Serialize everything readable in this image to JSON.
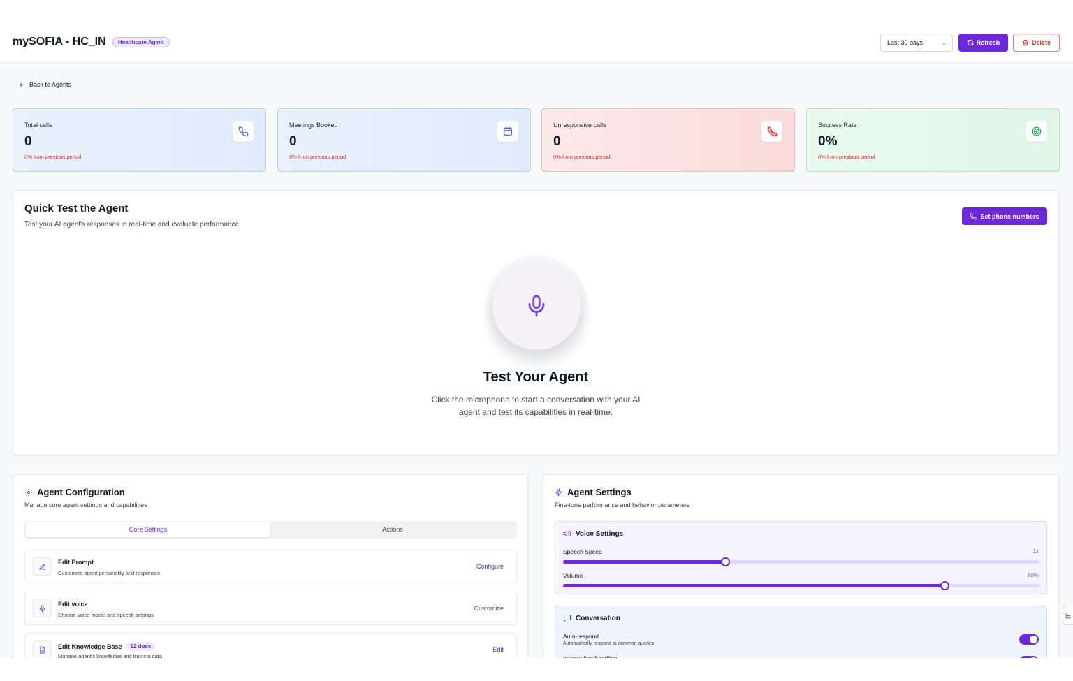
{
  "header": {
    "title": "mySOFIA - HC_IN",
    "badge": "Healthcare Agent",
    "range_select": "Last 30 days",
    "refresh_label": "Refresh",
    "delete_label": "Delete"
  },
  "back_link": "Back to Agents",
  "stats": [
    {
      "label": "Total calls",
      "value": "0",
      "delta": "0% from previous period",
      "icon": "phone-icon"
    },
    {
      "label": "Meetings Booked",
      "value": "0",
      "delta": "0% from previous period",
      "icon": "calendar-icon"
    },
    {
      "label": "Unresponsive calls",
      "value": "0",
      "delta": "0% from previous period",
      "icon": "phone-missed-icon"
    },
    {
      "label": "Success Rate",
      "value": "0%",
      "delta": "0% from previous period",
      "icon": "target-icon"
    }
  ],
  "quick_test": {
    "title": "Quick Test the Agent",
    "subtitle": "Test your AI agent's responses in real-time and evaluate performance",
    "phone_button": "Set phone numbers",
    "heading": "Test Your Agent",
    "description": "Click the microphone to start a conversation with your AI agent and test its capabilities in real-time."
  },
  "config": {
    "title": "Agent Configuration",
    "subtitle": "Manage core agent settings and capabilities",
    "tabs": [
      "Core Settings",
      "Actions"
    ],
    "items": [
      {
        "name": "Edit Prompt",
        "desc": "Customize agent personality and responses",
        "action": "Configure"
      },
      {
        "name": "Edit voice",
        "desc": "Choose voice model and speech settings",
        "action": "Customize"
      },
      {
        "name": "Edit Knowledge Base",
        "badge": "12 docs",
        "desc": "Manage agent's knowledge and training data",
        "action": "Edit"
      }
    ]
  },
  "settings": {
    "title": "Agent Settings",
    "subtitle": "Fine-tune performance and behavior parameters",
    "voice": {
      "title": "Voice Settings",
      "speed_label": "Speech Speed",
      "speed_value": "1x",
      "speed_fraction": 0.34,
      "volume_label": "Volume",
      "volume_value": "80%",
      "volume_fraction": 0.8
    },
    "conversation": {
      "title": "Conversation",
      "auto_label": "Auto-respond",
      "auto_desc": "Automatically respond to common queries",
      "interrupt_label": "Interruption handling"
    }
  },
  "colors": {
    "accent": "#6d28d9",
    "danger": "#dc2626",
    "success": "#16a34a",
    "info": "#1d4ed8"
  }
}
